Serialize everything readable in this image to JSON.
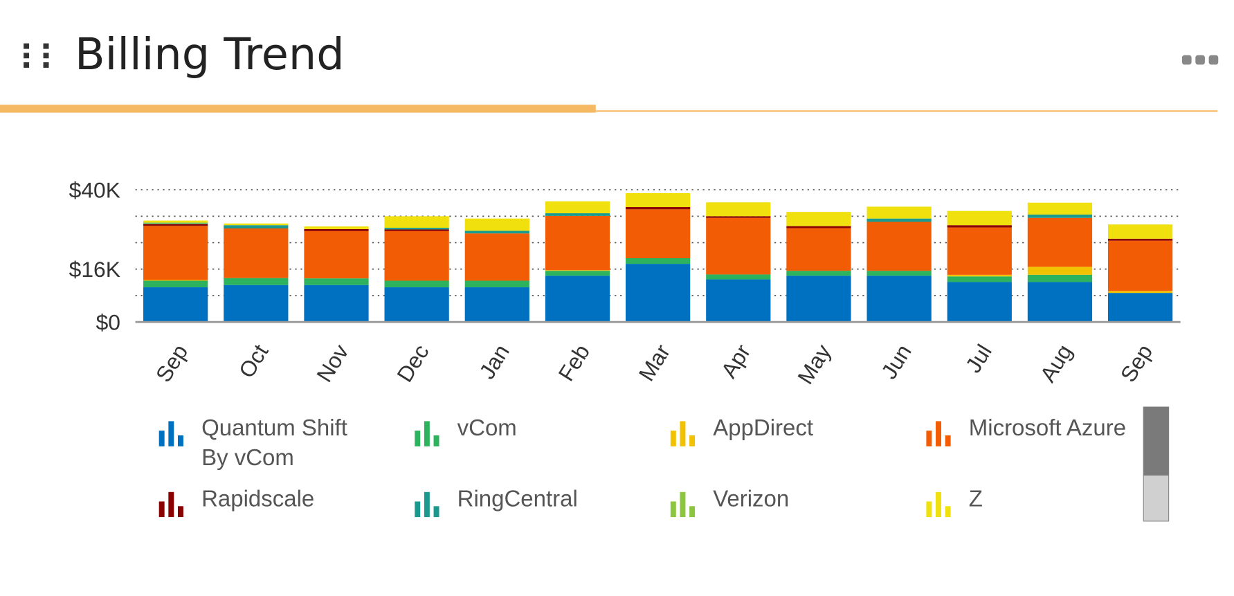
{
  "header": {
    "title": "Billing Trend"
  },
  "chart_data": {
    "type": "stacked-bar",
    "categories": [
      "Sep",
      "Oct",
      "Nov",
      "Dec",
      "Jan",
      "Feb",
      "Mar",
      "Apr",
      "May",
      "Jun",
      "Jul",
      "Aug",
      "Sep"
    ],
    "series": [
      {
        "name": "Quantum Shift By vCom",
        "color": "#0070c0",
        "values": [
          10500,
          11200,
          11200,
          10500,
          10500,
          14000,
          17600,
          12900,
          14000,
          14000,
          12100,
          12100,
          8800
        ]
      },
      {
        "name": "vCom",
        "color": "#2db35d",
        "values": [
          2000,
          2100,
          2000,
          2000,
          2000,
          1500,
          1700,
          1500,
          1500,
          1500,
          1700,
          2200,
          0
        ]
      },
      {
        "name": "AppDirect",
        "color": "#f2c200",
        "values": [
          200,
          0,
          0,
          0,
          0,
          200,
          0,
          0,
          0,
          0,
          500,
          2400,
          600
        ]
      },
      {
        "name": "Microsoft Azure",
        "color": "#f25c05",
        "values": [
          16400,
          15000,
          14300,
          15000,
          14300,
          16400,
          14800,
          17100,
          12900,
          14800,
          14300,
          14800,
          15200
        ]
      },
      {
        "name": "Rapidscale",
        "color": "#8b0000",
        "values": [
          500,
          0,
          600,
          500,
          0,
          0,
          700,
          500,
          600,
          0,
          700,
          0,
          600
        ]
      },
      {
        "name": "RingCentral",
        "color": "#1a9a8e",
        "values": [
          200,
          1000,
          0,
          500,
          800,
          800,
          0,
          0,
          0,
          1000,
          0,
          1000,
          0
        ]
      },
      {
        "name": "Verizon",
        "color": "#8cc63f",
        "values": [
          300,
          0,
          0,
          0,
          0,
          0,
          0,
          0,
          0,
          0,
          0,
          0,
          0
        ]
      },
      {
        "name": "Z",
        "color": "#f0e00e",
        "values": [
          600,
          500,
          800,
          3500,
          3700,
          3600,
          4200,
          4200,
          4300,
          3600,
          4300,
          3600,
          4300
        ]
      }
    ],
    "ylim": [
      0,
      40000
    ],
    "yticks": [
      {
        "value": 0,
        "label": "$0"
      },
      {
        "value": 8000,
        "label": null
      },
      {
        "value": 16000,
        "label": "$16K"
      },
      {
        "value": 24000,
        "label": null
      },
      {
        "value": 32000,
        "label": null
      },
      {
        "value": 40000,
        "label": "$40K"
      }
    ],
    "grid": true
  }
}
